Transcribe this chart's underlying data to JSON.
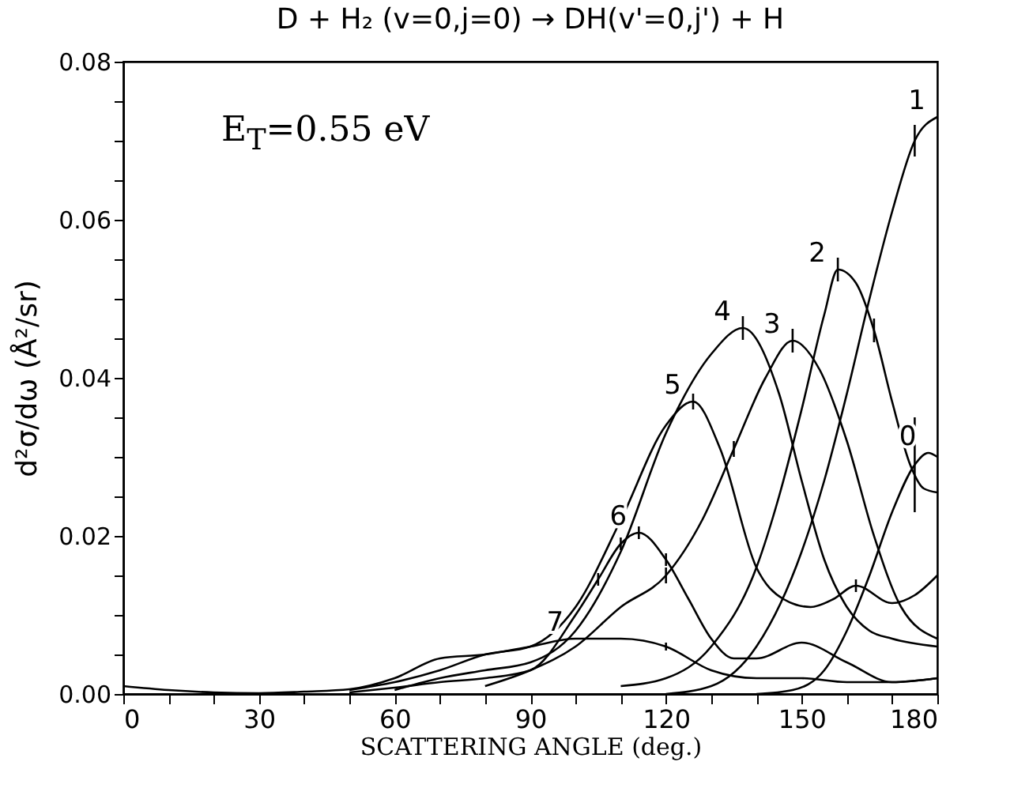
{
  "chart_data": {
    "type": "line",
    "title": "D + H₂ (v=0,j=0) → DH(v'=0,j') + H",
    "xlabel": "SCATTERING ANGLE (deg.)",
    "ylabel": "d²σ/dω  (Å²/sr)",
    "annotations": [
      "E$_{T}$=0.55 eV"
    ],
    "xlim": [
      0,
      180
    ],
    "ylim": [
      0,
      0.08
    ],
    "xticks": [
      0,
      {
        "value": 10,
        "label": null
      },
      {
        "value": 20,
        "label": null
      },
      30,
      {
        "value": 40,
        "label": null
      },
      {
        "value": 50,
        "label": null
      },
      60,
      {
        "value": 70,
        "label": null
      },
      {
        "value": 80,
        "label": null
      },
      90,
      {
        "value": 100,
        "label": null
      },
      {
        "value": 110,
        "label": null
      },
      120,
      {
        "value": 130,
        "label": null
      },
      {
        "value": 140,
        "label": null
      },
      150,
      {
        "value": 160,
        "label": null
      },
      {
        "value": 170,
        "label": null
      },
      180
    ],
    "yticks": [
      {
        "value": 0,
        "label": "0.00"
      },
      {
        "value": 0.005,
        "label": null
      },
      {
        "value": 0.02,
        "label": "0.02"
      },
      {
        "value": 0.01,
        "label": null
      },
      {
        "value": 0.015,
        "label": null
      },
      {
        "value": 0.025,
        "label": null
      },
      {
        "value": 0.03,
        "label": null
      },
      {
        "value": 0.035,
        "label": null
      },
      {
        "value": 0.04,
        "label": "0.04"
      },
      {
        "value": 0.045,
        "label": null
      },
      {
        "value": 0.05,
        "label": null
      },
      {
        "value": 0.055,
        "label": null
      },
      {
        "value": 0.06,
        "label": "0.06"
      },
      {
        "value": 0.065,
        "label": null
      },
      {
        "value": 0.07,
        "label": null
      },
      {
        "value": 0.075,
        "label": null
      },
      {
        "value": 0.08,
        "label": "0.08"
      }
    ],
    "grid": false,
    "legend": false,
    "marker": "none",
    "line_style": "solid",
    "series": [
      {
        "name": "0",
        "color": "#000000",
        "x": [
          140,
          148,
          155,
          160,
          165,
          170,
          175,
          178,
          180
        ],
        "values": [
          0,
          0.0005,
          0.003,
          0.008,
          0.015,
          0.023,
          0.029,
          0.0305,
          0.03
        ],
        "errors": [
          null,
          null,
          null,
          null,
          null,
          null,
          0.006,
          null,
          null
        ]
      },
      {
        "name": "1",
        "color": "#000000",
        "x": [
          120,
          130,
          140,
          150,
          155,
          160,
          165,
          170,
          175,
          180
        ],
        "values": [
          0,
          0.001,
          0.006,
          0.018,
          0.027,
          0.038,
          0.05,
          0.061,
          0.07,
          0.073
        ],
        "errors": [
          null,
          null,
          null,
          null,
          null,
          null,
          null,
          null,
          0.002,
          null
        ]
      },
      {
        "name": "2",
        "color": "#000000",
        "x": [
          110,
          120,
          130,
          140,
          145,
          150,
          155,
          158,
          162,
          166,
          170,
          174,
          177,
          180
        ],
        "values": [
          0.001,
          0.002,
          0.006,
          0.016,
          0.025,
          0.036,
          0.048,
          0.0537,
          0.052,
          0.046,
          0.037,
          0.029,
          0.026,
          0.0255
        ],
        "errors": [
          null,
          null,
          null,
          null,
          null,
          null,
          null,
          0.0015,
          null,
          0.0015,
          null,
          null,
          null,
          null
        ]
      },
      {
        "name": "3",
        "color": "#000000",
        "x": [
          80,
          90,
          100,
          110,
          120,
          128,
          135,
          142,
          148,
          154,
          160,
          166,
          172,
          180
        ],
        "values": [
          0.001,
          0.003,
          0.006,
          0.011,
          0.015,
          0.022,
          0.031,
          0.04,
          0.0447,
          0.041,
          0.032,
          0.02,
          0.011,
          0.007
        ],
        "errors": [
          null,
          null,
          null,
          null,
          0.001,
          null,
          0.001,
          null,
          0.0015,
          null,
          null,
          null,
          null,
          null
        ]
      },
      {
        "name": "4",
        "color": "#000000",
        "x": [
          60,
          70,
          80,
          90,
          100,
          110,
          120,
          130,
          137,
          145,
          150,
          155,
          160,
          165,
          170,
          180
        ],
        "values": [
          0.0005,
          0.002,
          0.003,
          0.004,
          0.008,
          0.018,
          0.033,
          0.043,
          0.0463,
          0.038,
          0.027,
          0.017,
          0.011,
          0.008,
          0.007,
          0.006
        ],
        "errors": [
          null,
          null,
          null,
          null,
          null,
          null,
          null,
          null,
          0.0015,
          null,
          null,
          null,
          null,
          null,
          null,
          null
        ]
      },
      {
        "name": "5",
        "color": "#000000",
        "x": [
          50,
          60,
          70,
          80,
          90,
          100,
          110,
          120,
          126,
          132,
          140,
          146,
          152,
          157,
          162,
          170,
          175,
          180
        ],
        "values": [
          0.0005,
          0.0015,
          0.003,
          0.005,
          0.006,
          0.011,
          0.022,
          0.034,
          0.037,
          0.031,
          0.016,
          0.012,
          0.011,
          0.012,
          0.0137,
          0.0115,
          0.0125,
          0.015
        ],
        "errors": [
          null,
          null,
          null,
          null,
          null,
          null,
          null,
          null,
          0.001,
          null,
          null,
          null,
          null,
          null,
          0.0008,
          null,
          null,
          null
        ]
      },
      {
        "name": "6",
        "color": "#000000",
        "x": [
          50,
          60,
          70,
          80,
          90,
          100,
          105,
          110,
          114,
          120,
          125,
          130,
          135,
          140,
          150,
          160,
          170,
          180
        ],
        "values": [
          0.0002,
          0.0008,
          0.0015,
          0.002,
          0.003,
          0.01,
          0.0145,
          0.019,
          0.0204,
          0.017,
          0.012,
          0.007,
          0.0045,
          0.0045,
          0.0065,
          0.004,
          0.0015,
          0.002
        ],
        "errors": [
          null,
          null,
          null,
          null,
          null,
          null,
          0.0008,
          0.0008,
          0.0008,
          0.0008,
          null,
          null,
          null,
          null,
          null,
          null,
          null,
          null
        ]
      },
      {
        "name": "7",
        "color": "#000000",
        "x": [
          0,
          10,
          20,
          30,
          40,
          50,
          60,
          70,
          80,
          90,
          100,
          110,
          120,
          130,
          140,
          150,
          160,
          170,
          180
        ],
        "values": [
          0.001,
          0.0005,
          0.0002,
          0.0001,
          0.0003,
          0.0006,
          0.002,
          0.0045,
          0.005,
          0.006,
          0.007,
          0.007,
          0.006,
          0.003,
          0.002,
          0.002,
          0.0015,
          0.0015,
          0.002
        ],
        "errors": [
          null,
          null,
          null,
          null,
          null,
          null,
          null,
          null,
          null,
          null,
          null,
          null,
          0.0005,
          null,
          null,
          null,
          null,
          null,
          null
        ]
      }
    ]
  }
}
